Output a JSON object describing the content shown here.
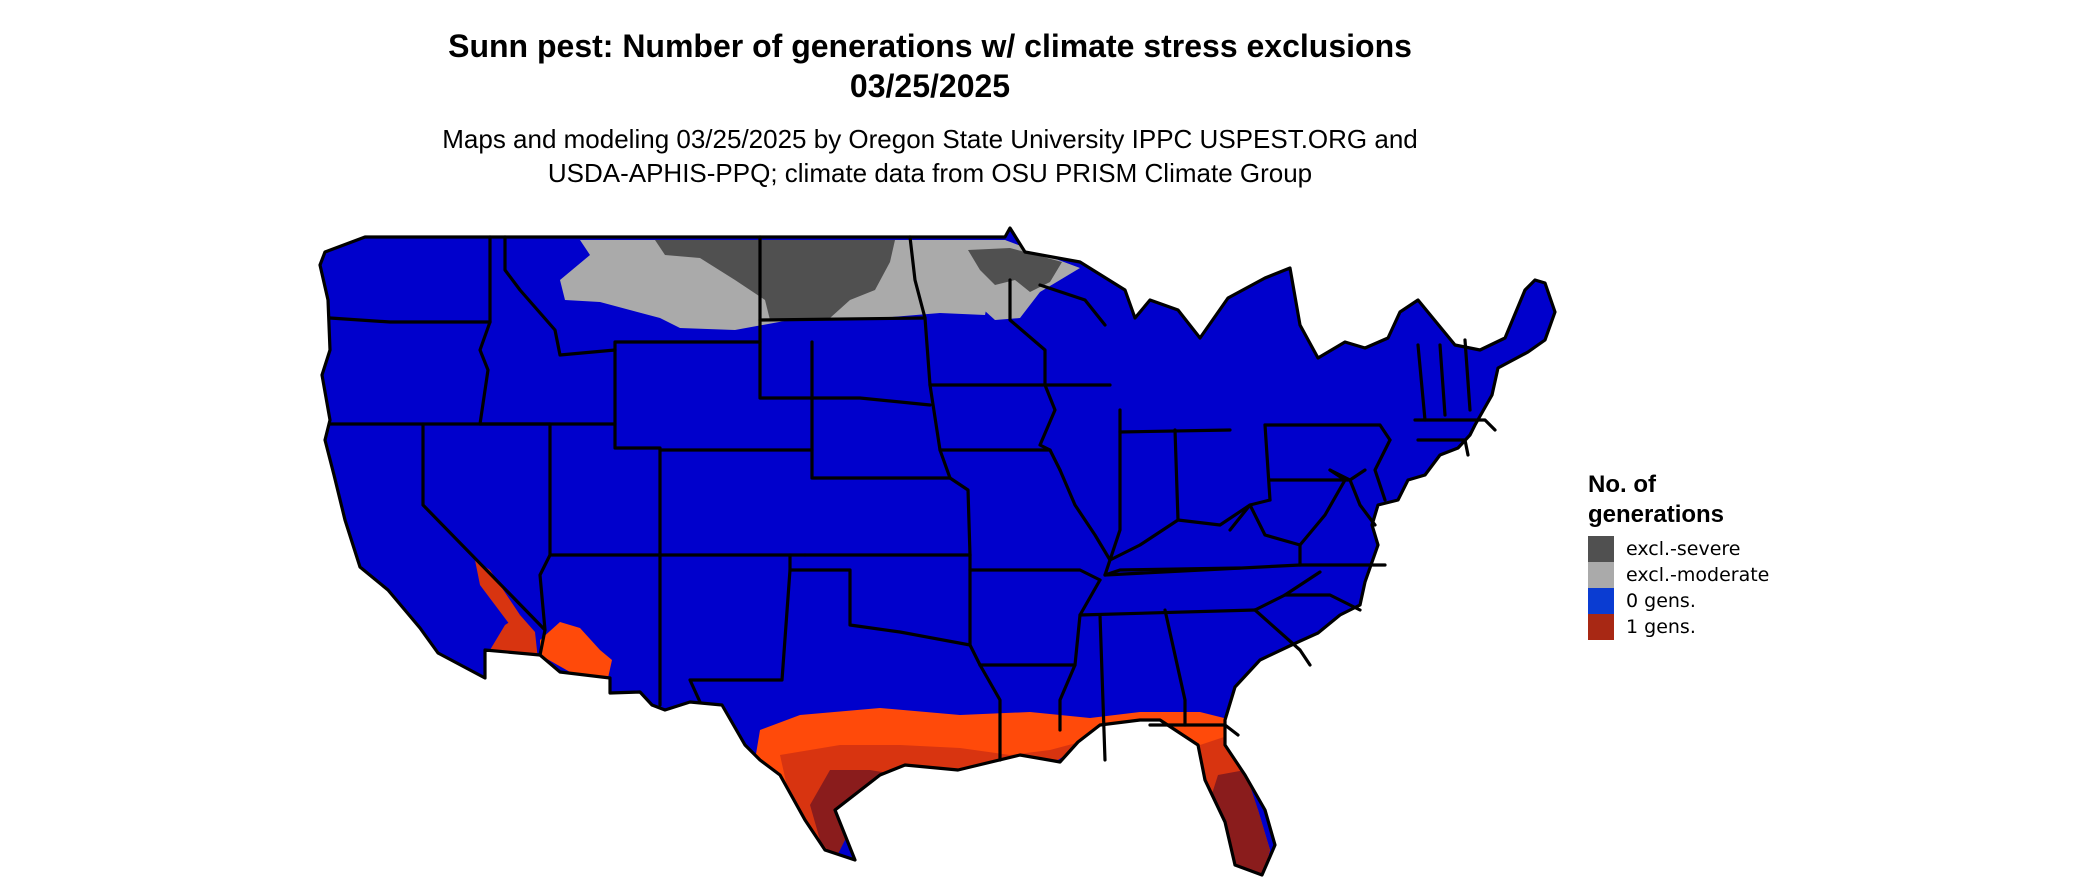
{
  "title": {
    "line1": "Sunn pest: Number of generations w/ climate stress exclusions",
    "line2": "03/25/2025"
  },
  "subtitle": {
    "line1": "Maps and modeling 03/25/2025 by Oregon State University IPPC USPEST.ORG and",
    "line2": "USDA-APHIS-PPQ; climate data from OSU PRISM Climate Group"
  },
  "legend": {
    "title_line1": "No. of",
    "title_line2": "generations",
    "items": [
      {
        "label": "excl.-severe",
        "color": "#505050"
      },
      {
        "label": "excl.-moderate",
        "color": "#aaaaaa"
      },
      {
        "label": "0 gens.",
        "color": "#0a3cd2"
      },
      {
        "label": "1 gens.",
        "color": "#a82814"
      }
    ]
  },
  "colors": {
    "base_blue": "#0000cc",
    "severe": "#505050",
    "moderate": "#aaaaaa",
    "orange": "#ff4a0a",
    "red": "#d83410",
    "dark_red": "#8a1c1c",
    "border": "#000000"
  }
}
